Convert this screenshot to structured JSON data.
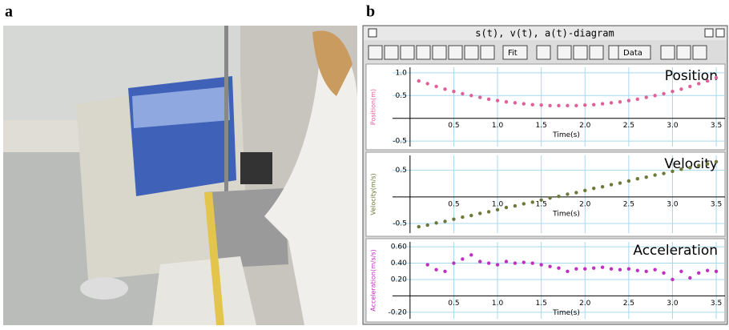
{
  "panel_labels": {
    "a": "a",
    "b": "b"
  },
  "window": {
    "title": "s(t), v(t), a(t)-diagram",
    "toolbar": {
      "fit": "Fit",
      "data": "Data"
    }
  },
  "chart_data": [
    {
      "type": "scatter",
      "title": "Position",
      "x_label": "Time(s)",
      "y_label": "Position(m)",
      "color": "#e0609a",
      "x": [
        0.1,
        0.2,
        0.3,
        0.4,
        0.5,
        0.6,
        0.7,
        0.8,
        0.9,
        1.0,
        1.1,
        1.2,
        1.3,
        1.4,
        1.5,
        1.6,
        1.7,
        1.8,
        1.9,
        2.0,
        2.1,
        2.2,
        2.3,
        2.4,
        2.5,
        2.6,
        2.7,
        2.8,
        2.9,
        3.0,
        3.1,
        3.2,
        3.3,
        3.4,
        3.5
      ],
      "values": [
        0.82,
        0.76,
        0.7,
        0.64,
        0.59,
        0.54,
        0.5,
        0.46,
        0.42,
        0.39,
        0.36,
        0.34,
        0.32,
        0.3,
        0.29,
        0.28,
        0.28,
        0.28,
        0.28,
        0.29,
        0.3,
        0.32,
        0.34,
        0.36,
        0.39,
        0.42,
        0.46,
        0.5,
        0.54,
        0.59,
        0.64,
        0.7,
        0.76,
        0.82,
        0.89
      ],
      "xlim": [
        -0.2,
        3.6
      ],
      "ylim": [
        -0.62,
        1.12
      ],
      "xticks": [
        0.5,
        {
          "value": 1,
          "label": "1.0"
        },
        1.5,
        {
          "value": 2,
          "label": "2.0"
        },
        2.5,
        {
          "value": 3,
          "label": "3.0"
        },
        3.5
      ],
      "yticks": [
        {
          "value": 1,
          "label": "1.0"
        },
        0.5,
        -0.5
      ],
      "grid": true
    },
    {
      "type": "scatter",
      "title": "Velocity",
      "x_label": "Time(s)",
      "y_label": "Velocity(m/s)",
      "color": "#6b7a3a",
      "x": [
        0.1,
        0.2,
        0.3,
        0.4,
        0.5,
        0.6,
        0.7,
        0.8,
        0.9,
        1.0,
        1.1,
        1.2,
        1.3,
        1.4,
        1.5,
        1.6,
        1.7,
        1.8,
        1.9,
        2.0,
        2.1,
        2.2,
        2.3,
        2.4,
        2.5,
        2.6,
        2.7,
        2.8,
        2.9,
        3.0,
        3.1,
        3.2,
        3.3,
        3.4,
        3.5
      ],
      "values": [
        -0.56,
        -0.53,
        -0.49,
        -0.46,
        -0.42,
        -0.38,
        -0.35,
        -0.31,
        -0.28,
        -0.24,
        -0.2,
        -0.17,
        -0.13,
        -0.1,
        -0.06,
        -0.02,
        0.01,
        0.05,
        0.08,
        0.12,
        0.16,
        0.19,
        0.23,
        0.26,
        0.3,
        0.34,
        0.37,
        0.41,
        0.44,
        0.48,
        0.52,
        0.55,
        0.59,
        0.62,
        0.66
      ],
      "xlim": [
        -0.2,
        3.6
      ],
      "ylim": [
        -0.68,
        0.78
      ],
      "xticks": [
        0.5,
        {
          "value": 1,
          "label": "1.0"
        },
        1.5,
        {
          "value": 2,
          "label": "2.0"
        },
        2.5,
        {
          "value": 3,
          "label": "3.0"
        },
        3.5
      ],
      "yticks": [
        0.5,
        -0.5
      ],
      "grid": true
    },
    {
      "type": "scatter",
      "title": "Acceleration",
      "x_label": "Time(s)",
      "y_label": "Acceleration(m/s/s)",
      "color": "#c030c0",
      "x": [
        0.2,
        0.3,
        0.4,
        0.5,
        0.6,
        0.7,
        0.8,
        0.9,
        1.0,
        1.1,
        1.2,
        1.3,
        1.4,
        1.5,
        1.6,
        1.7,
        1.8,
        1.9,
        2.0,
        2.1,
        2.2,
        2.3,
        2.4,
        2.5,
        2.6,
        2.7,
        2.8,
        2.9,
        3.0,
        3.1,
        3.2,
        3.3,
        3.4,
        3.5
      ],
      "values": [
        0.38,
        0.32,
        0.3,
        0.4,
        0.45,
        0.5,
        0.42,
        0.4,
        0.38,
        0.42,
        0.4,
        0.41,
        0.4,
        0.38,
        0.36,
        0.34,
        0.3,
        0.33,
        0.33,
        0.34,
        0.35,
        0.33,
        0.32,
        0.33,
        0.31,
        0.3,
        0.32,
        0.28,
        0.2,
        0.3,
        0.22,
        0.28,
        0.31,
        0.3
      ],
      "xlim": [
        -0.2,
        3.6
      ],
      "ylim": [
        -0.28,
        0.66
      ],
      "xticks": [
        0.5,
        {
          "value": 1,
          "label": "1.0"
        },
        1.5,
        {
          "value": 2,
          "label": "2.0"
        },
        2.5,
        {
          "value": 3,
          "label": "3.0"
        },
        3.5
      ],
      "yticks": [
        {
          "value": 0.6,
          "label": "0.60"
        },
        {
          "value": 0.4,
          "label": "0.40"
        },
        {
          "value": 0.2,
          "label": "0.20"
        },
        {
          "value": -0.2,
          "label": "-0.20"
        }
      ],
      "grid": true
    }
  ]
}
